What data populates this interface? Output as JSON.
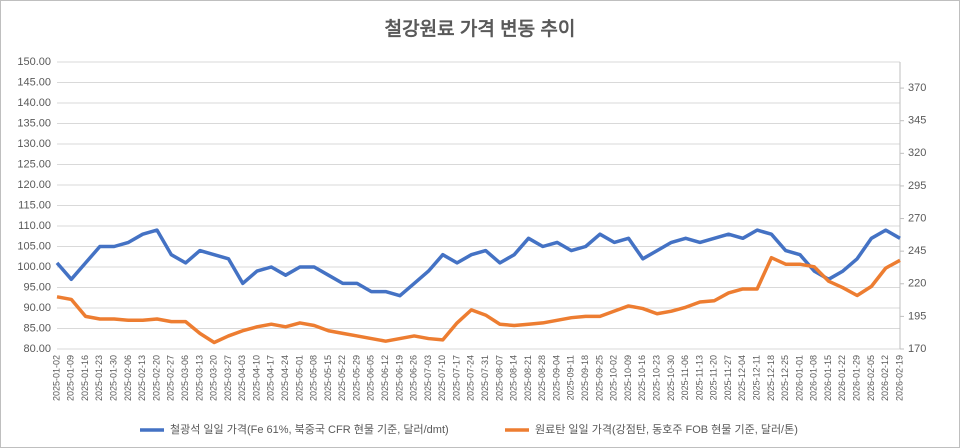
{
  "chart_data": {
    "type": "line",
    "title": "철강원료 가격 변동 추이",
    "categories": [
      "2025-01-02",
      "2025-01-09",
      "2025-01-16",
      "2025-01-23",
      "2025-01-30",
      "2025-02-06",
      "2025-02-13",
      "2025-02-20",
      "2025-02-27",
      "2025-03-06",
      "2025-03-13",
      "2025-03-20",
      "2025-03-27",
      "2025-04-03",
      "2025-04-10",
      "2025-04-17",
      "2025-04-24",
      "2025-05-01",
      "2025-05-08",
      "2025-05-15",
      "2025-05-22",
      "2025-05-29",
      "2025-06-05",
      "2025-06-12",
      "2025-06-19",
      "2025-06-26",
      "2025-07-03",
      "2025-07-10",
      "2025-07-17",
      "2025-07-24",
      "2025-07-31",
      "2025-08-07",
      "2025-08-14",
      "2025-08-21",
      "2025-08-28",
      "2025-09-04",
      "2025-09-11",
      "2025-09-18",
      "2025-09-25",
      "2025-10-02",
      "2025-10-09",
      "2025-10-16",
      "2025-10-23",
      "2025-10-30",
      "2025-11-06",
      "2025-11-13",
      "2025-11-20",
      "2025-11-27",
      "2025-12-04",
      "2025-12-11",
      "2025-12-18",
      "2025-12-25",
      "2026-01-01",
      "2026-01-08",
      "2026-01-15",
      "2026-01-22",
      "2026-01-29",
      "2026-02-05",
      "2026-02-12",
      "2026-02-19"
    ],
    "series": [
      {
        "name": "철광석 일일 가격(Fe 61%, 북중국 CFR 현물 기준, 달러/dmt)",
        "color": "#4472c4",
        "axis": "y",
        "values": [
          101,
          97,
          101,
          105,
          105,
          106,
          108,
          109,
          103,
          101,
          104,
          103,
          102,
          96,
          99,
          100,
          98,
          100,
          100,
          98,
          96,
          96,
          94,
          94,
          93,
          96,
          99,
          103,
          101,
          103,
          104,
          101,
          103,
          107,
          105,
          106,
          104,
          105,
          108,
          106,
          107,
          102,
          104,
          106,
          107,
          106,
          107,
          108,
          107,
          109,
          108,
          104,
          103,
          99,
          97,
          99,
          102,
          107,
          109,
          107
        ]
      },
      {
        "name": "원료탄 일일 가격(강점탄, 동호주 FOB 현물 기준, 달러/톤)",
        "color": "#ed7d31",
        "axis": "y2",
        "values": [
          210,
          208,
          195,
          193,
          193,
          192,
          192,
          193,
          191,
          191,
          182,
          175,
          180,
          184,
          187,
          189,
          187,
          190,
          188,
          184,
          182,
          180,
          178,
          176,
          178,
          180,
          178,
          177,
          190,
          200,
          196,
          189,
          188,
          189,
          190,
          192,
          194,
          195,
          195,
          199,
          203,
          201,
          197,
          199,
          202,
          206,
          207,
          213,
          216,
          216,
          240,
          235,
          235,
          233,
          222,
          217,
          211,
          218,
          232,
          238
        ]
      }
    ],
    "ylim": [
      80,
      150
    ],
    "yticks": [
      {
        "value": 80,
        "label": "80.00"
      },
      {
        "value": 85,
        "label": "85.00"
      },
      {
        "value": 90,
        "label": "90.00"
      },
      {
        "value": 95,
        "label": "95.00"
      },
      {
        "value": 100,
        "label": "100.00"
      },
      {
        "value": 105,
        "label": "105.00"
      },
      {
        "value": 110,
        "label": "110.00"
      },
      {
        "value": 115,
        "label": "115.00"
      },
      {
        "value": 120,
        "label": "120.00"
      },
      {
        "value": 125,
        "label": "125.00"
      },
      {
        "value": 130,
        "label": "130.00"
      },
      {
        "value": 135,
        "label": "135.00"
      },
      {
        "value": 140,
        "label": "140.00"
      },
      {
        "value": 145,
        "label": "145.00"
      },
      {
        "value": 150,
        "label": "150.00"
      }
    ],
    "y2lim": [
      170,
      390
    ],
    "y2ticks": [
      170,
      195,
      220,
      245,
      270,
      295,
      320,
      345,
      370
    ],
    "legend": "bottom"
  }
}
